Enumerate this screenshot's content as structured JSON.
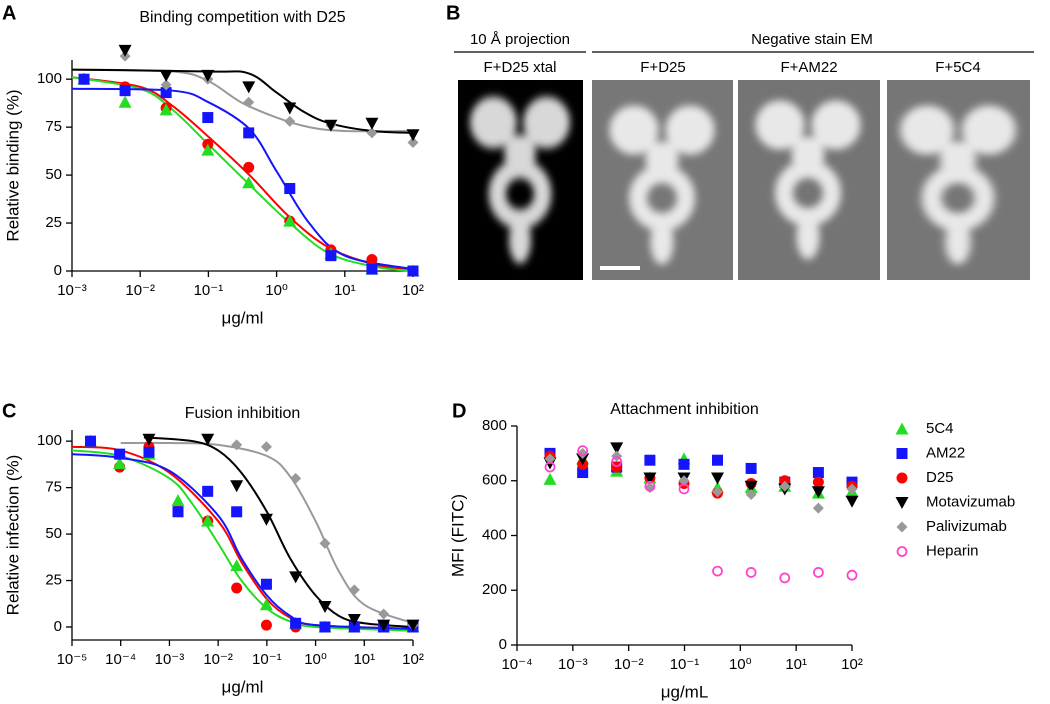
{
  "figure": {
    "panel_b": {
      "label": "B",
      "projection_header": "10 Å projection",
      "projection_label": "F+D25 xtal",
      "em_header": "Negative stain EM",
      "em_labels": [
        "F+D25",
        "F+AM22",
        "F+5C4"
      ]
    }
  },
  "chart_data": [
    {
      "type": "scatter",
      "panel": "A",
      "title": "Binding competition with D25",
      "xlabel": "μg/ml",
      "ylabel": "Relative binding (%)",
      "xscale": "log",
      "x": [
        0.0015,
        0.006,
        0.024,
        0.098,
        0.39,
        1.56,
        6.25,
        25,
        100
      ],
      "xlim": [
        0.001,
        100
      ],
      "xticks": [
        {
          "value": 0.001,
          "label": "10⁻³"
        },
        {
          "value": 0.01,
          "label": "10⁻²"
        },
        {
          "value": 0.1,
          "label": "10⁻¹"
        },
        {
          "value": 1,
          "label": "10⁰"
        },
        {
          "value": 10,
          "label": "10¹"
        },
        {
          "value": 100,
          "label": "10²"
        }
      ],
      "ylim": [
        0,
        110
      ],
      "yticks": [
        0,
        25,
        50,
        75,
        100
      ],
      "series": [
        {
          "color": "#ff0000",
          "marker": "circle",
          "values": [
            100,
            96,
            85,
            66,
            54,
            26,
            11,
            6,
            0
          ],
          "curve": {
            "x": [
              0.001,
              0.01,
              0.03,
              0.1,
              0.4,
              1.56,
              6,
              30,
              100
            ],
            "values": [
              101,
              96,
              86,
              70,
              50,
              28,
              12,
              3,
              1
            ]
          }
        },
        {
          "color": "#22dd22",
          "marker": "triangle",
          "values": [
            100,
            88,
            84,
            63,
            46,
            26,
            9,
            1,
            0
          ],
          "curve": {
            "x": [
              0.001,
              0.01,
              0.03,
              0.1,
              0.4,
              1.56,
              6,
              30,
              100
            ],
            "values": [
              101,
              95,
              84,
              66,
              45,
              25,
              9,
              2,
              0
            ]
          }
        },
        {
          "color": "#1414ff",
          "marker": "square",
          "values": [
            100,
            94,
            93,
            80,
            72,
            43,
            8,
            1,
            0
          ],
          "curve": {
            "x": [
              0.001,
              0.03,
              0.1,
              0.4,
              1,
              3,
              10,
              100
            ],
            "values": [
              95,
              94,
              88,
              74,
              52,
              25,
              8,
              1
            ]
          }
        },
        {
          "color": "#999999",
          "marker": "diamond",
          "values": [
            null,
            112,
            97,
            100,
            88,
            78,
            76,
            72,
            67
          ],
          "curve": {
            "x": [
              0.001,
              0.03,
              0.1,
              0.3,
              1,
              3,
              10,
              100
            ],
            "values": [
              105,
              104,
              99,
              88,
              80,
              75,
              73,
              73
            ]
          }
        },
        {
          "color": "#000000",
          "marker": "triangle-down",
          "values": [
            null,
            115,
            102,
            102,
            96,
            85,
            76,
            77,
            71
          ],
          "curve": {
            "x": [
              0.001,
              0.1,
              0.39,
              1,
              2.5,
              6,
              25,
              100
            ],
            "values": [
              105,
              104,
              103,
              93,
              83,
              77,
              73,
              72
            ]
          }
        }
      ]
    },
    {
      "type": "scatter",
      "panel": "C",
      "title": "Fusion inhibition",
      "xlabel": "μg/ml",
      "ylabel": "Relative infection (%)",
      "xscale": "log",
      "x": [
        2.4e-05,
        9.5e-05,
        0.00038,
        0.0015,
        0.0061,
        0.024,
        0.098,
        0.39,
        1.56,
        6.25,
        25,
        100
      ],
      "xlim": [
        1e-05,
        100
      ],
      "xticks": [
        {
          "value": 1e-05,
          "label": "10⁻⁵"
        },
        {
          "value": 0.0001,
          "label": "10⁻⁴"
        },
        {
          "value": 0.001,
          "label": "10⁻³"
        },
        {
          "value": 0.01,
          "label": "10⁻²"
        },
        {
          "value": 0.1,
          "label": "10⁻¹"
        },
        {
          "value": 1,
          "label": "10⁰"
        },
        {
          "value": 10,
          "label": "10¹"
        },
        {
          "value": 100,
          "label": "10²"
        }
      ],
      "ylim": [
        -7,
        106
      ],
      "yticks": [
        0,
        25,
        50,
        75,
        100
      ],
      "series": [
        {
          "color": "#ff0000",
          "marker": "circle",
          "values": [
            null,
            86,
            97,
            63,
            57,
            21,
            1,
            0,
            0,
            0,
            0,
            0
          ],
          "curve": {
            "x": [
              1e-05,
              0.0001,
              0.001,
              0.01,
              0.03,
              0.1,
              0.3,
              1,
              100
            ],
            "values": [
              97,
              95,
              83,
              57,
              35,
              15,
              5,
              1,
              -1
            ]
          }
        },
        {
          "color": "#22dd22",
          "marker": "triangle",
          "values": [
            100,
            88,
            93,
            68,
            57,
            33,
            12,
            2,
            0,
            0,
            0,
            0
          ],
          "curve": {
            "x": [
              1e-05,
              0.0001,
              0.001,
              0.003,
              0.01,
              0.03,
              0.1,
              0.3,
              1,
              100
            ],
            "values": [
              95,
              92,
              80,
              66,
              45,
              25,
              10,
              3,
              0,
              -2
            ]
          }
        },
        {
          "color": "#1414ff",
          "marker": "square",
          "values": [
            100,
            93,
            94,
            62,
            73,
            62,
            23,
            2,
            0,
            0,
            0,
            0
          ],
          "curve": {
            "x": [
              1e-05,
              0.0001,
              0.001,
              0.01,
              0.03,
              0.1,
              0.3,
              1,
              100
            ],
            "values": [
              93,
              91,
              84,
              60,
              37,
              17,
              6,
              1,
              -1
            ]
          }
        },
        {
          "color": "#999999",
          "marker": "diamond",
          "values": [
            null,
            null,
            null,
            null,
            null,
            98,
            97,
            80,
            45,
            20,
            7,
            1
          ],
          "curve": {
            "x": [
              0.0001,
              0.001,
              0.01,
              0.1,
              0.3,
              1,
              3,
              10,
              100
            ],
            "values": [
              99,
              99,
              98,
              92,
              81,
              57,
              30,
              12,
              2
            ]
          }
        },
        {
          "color": "#000000",
          "marker": "triangle-down",
          "values": [
            null,
            null,
            101,
            null,
            101,
            76,
            58,
            27,
            11,
            4,
            1,
            1
          ],
          "curve": {
            "x": [
              0.0003,
              0.003,
              0.01,
              0.03,
              0.1,
              0.3,
              1,
              3,
              10,
              100
            ],
            "values": [
              102,
              100,
              95,
              83,
              62,
              37,
              17,
              6,
              2,
              0
            ]
          }
        }
      ]
    },
    {
      "type": "scatter",
      "panel": "D",
      "title": "Attachment inhibition",
      "xlabel": "μg/mL",
      "ylabel": "MFI (FITC)",
      "xscale": "log",
      "legend": "right",
      "x": [
        0.00039,
        0.0015,
        0.0061,
        0.024,
        0.098,
        0.39,
        1.56,
        6.25,
        25,
        100
      ],
      "xlim": [
        0.0001,
        100
      ],
      "xticks": [
        {
          "value": 0.0001,
          "label": "10⁻⁴"
        },
        {
          "value": 0.001,
          "label": "10⁻³"
        },
        {
          "value": 0.01,
          "label": "10⁻²"
        },
        {
          "value": 0.1,
          "label": "10⁻¹"
        },
        {
          "value": 1,
          "label": "10⁰"
        },
        {
          "value": 10,
          "label": "10¹"
        },
        {
          "value": 100,
          "label": "10²"
        }
      ],
      "ylim": [
        0,
        800
      ],
      "yticks": [
        0,
        200,
        400,
        600,
        800
      ],
      "series": [
        {
          "name": "5C4",
          "color": "#22dd22",
          "marker": "triangle",
          "values": [
            605,
            680,
            635,
            610,
            680,
            575,
            575,
            580,
            555,
            560
          ]
        },
        {
          "name": "AM22",
          "color": "#1414ff",
          "marker": "square",
          "values": [
            700,
            630,
            650,
            675,
            660,
            675,
            645,
            595,
            630,
            595
          ]
        },
        {
          "name": "D25",
          "color": "#ff0000",
          "marker": "circle",
          "values": [
            690,
            660,
            650,
            610,
            590,
            555,
            590,
            600,
            595,
            580
          ]
        },
        {
          "name": "Motavizumab",
          "color": "#000000",
          "marker": "triangle-down",
          "values": [
            665,
            680,
            720,
            610,
            610,
            610,
            580,
            570,
            560,
            525
          ]
        },
        {
          "name": "Palivizumab",
          "color": "#999999",
          "marker": "diamond",
          "values": [
            680,
            700,
            690,
            575,
            600,
            560,
            550,
            580,
            500,
            570
          ]
        },
        {
          "name": "Heparin",
          "color": "#ff44cc",
          "marker": "open-circle",
          "values": [
            650,
            710,
            670,
            580,
            570,
            270,
            265,
            245,
            265,
            255
          ]
        }
      ]
    }
  ]
}
